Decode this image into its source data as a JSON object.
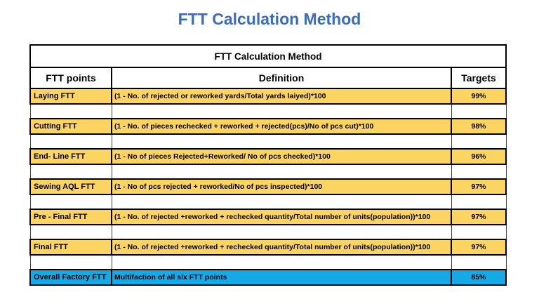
{
  "page": {
    "title": "FTT Calculation Method"
  },
  "table": {
    "merged_header": "FTT Calculation Method",
    "columns": [
      "FTT points",
      "Definition",
      "Targets"
    ],
    "rows": [
      {
        "point": "Laying FTT",
        "definition": "(1 - No. of rejected or reworked  yards/Total yards laiyed)*100",
        "target": "99%",
        "highlight": "yellow"
      },
      {
        "point": "Cutting FTT",
        "definition": "(1 - No. of  pieces rechecked + reworked + rejected(pcs)/No of pcs cut)*100",
        "target": "98%",
        "highlight": "yellow"
      },
      {
        "point": "End- Line FTT",
        "definition": "(1 - No of pieces Rejected+Reworked/ No of pcs checked)*100",
        "target": "96%",
        "highlight": "yellow"
      },
      {
        "point": "Sewing AQL FTT",
        "definition": "(1 - No of pcs rejected + reworked/No of pcs inspected)*100",
        "target": "97%",
        "highlight": "yellow"
      },
      {
        "point": "Pre - Final FTT",
        "definition": "(1 - No. of rejected +reworked + rechecked quantity/Total number of units(population))*100",
        "target": "97%",
        "highlight": "yellow"
      },
      {
        "point": "Final FTT",
        "definition": "(1 - No. of rejected +reworked + rechecked quantity/Total number of units(population))*100",
        "target": "97%",
        "highlight": "yellow"
      },
      {
        "point": "Overall Factory FTT",
        "definition": "Multifaction of all six FTT points",
        "target": "85%",
        "highlight": "blue"
      }
    ],
    "colors": {
      "title_blue": "#3a6bbf",
      "row_yellow": "#fcd462",
      "row_blue": "#15a9e6"
    }
  }
}
